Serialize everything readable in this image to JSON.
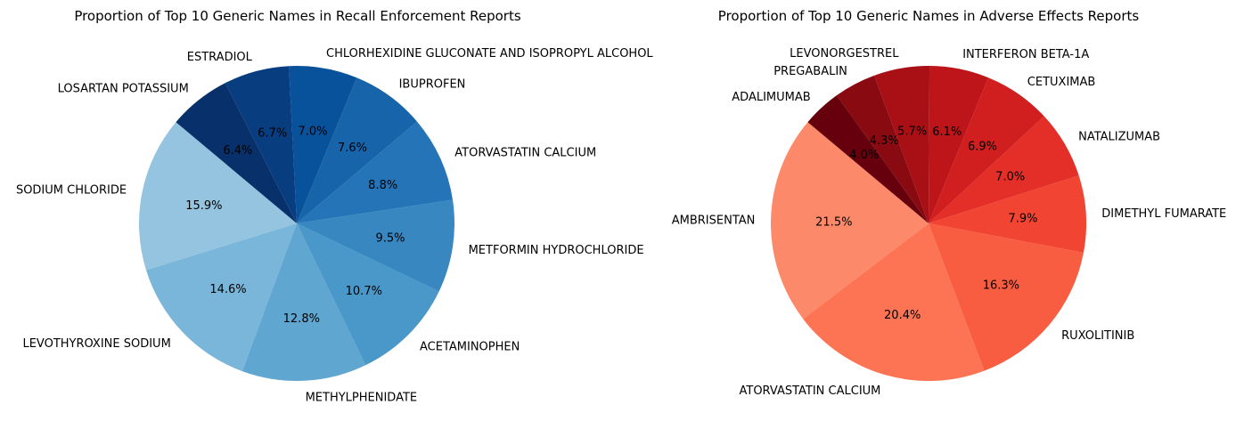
{
  "chart_data": [
    {
      "type": "pie",
      "title": "Proportion of Top 10 Generic Names in Recall Enforcement Reports",
      "start_angle_deg": 140,
      "direction": "counterclockwise",
      "categories": [
        "SODIUM CHLORIDE",
        "LEVOTHYROXINE SODIUM",
        "METHYLPHENIDATE",
        "ACETAMINOPHEN",
        "METFORMIN HYDROCHLORIDE",
        "ATORVASTATIN CALCIUM",
        "IBUPROFEN",
        "CHLORHEXIDINE GLUCONATE AND ISOPROPYL ALCOHOL",
        "ESTRADIOL",
        "LOSARTAN POTASSIUM"
      ],
      "values": [
        15.9,
        14.6,
        12.8,
        10.7,
        9.5,
        8.8,
        7.6,
        7.0,
        6.7,
        6.4
      ],
      "pct_labels": [
        "15.9%",
        "14.6%",
        "12.8%",
        "10.7%",
        "9.5%",
        "8.8%",
        "7.6%",
        "7.0%",
        "6.7%",
        "6.4%"
      ],
      "colors": [
        "#94c4df",
        "#7ab6d9",
        "#5fa6d1",
        "#4a98c9",
        "#3887c0",
        "#2474b7",
        "#1764ab",
        "#08529c",
        "#083e80",
        "#08306b"
      ],
      "colormap": "Blues"
    },
    {
      "type": "pie",
      "title": "Proportion of Top 10 Generic Names in Adverse Effects Reports",
      "start_angle_deg": 140,
      "direction": "counterclockwise",
      "categories": [
        "AMBRISENTAN",
        "ATORVASTATIN CALCIUM",
        "RUXOLITINIB",
        "DIMETHYL FUMARATE",
        "NATALIZUMAB",
        "CETUXIMAB",
        "INTERFERON BETA-1A",
        "LEVONORGESTREL",
        "PREGABALIN",
        "ADALIMUMAB"
      ],
      "values": [
        21.5,
        20.4,
        16.3,
        7.9,
        7.0,
        6.9,
        6.1,
        5.7,
        4.3,
        4.0
      ],
      "pct_labels": [
        "21.5%",
        "20.4%",
        "16.3%",
        "7.9%",
        "7.0%",
        "6.9%",
        "6.1%",
        "5.7%",
        "4.3%",
        "4.0%"
      ],
      "colors": [
        "#fc8a6a",
        "#fc7454",
        "#f85d42",
        "#f14432",
        "#e32f27",
        "#d11e1f",
        "#bd151a",
        "#a91016",
        "#8a0a12",
        "#67000d"
      ],
      "colormap": "Reds"
    }
  ]
}
